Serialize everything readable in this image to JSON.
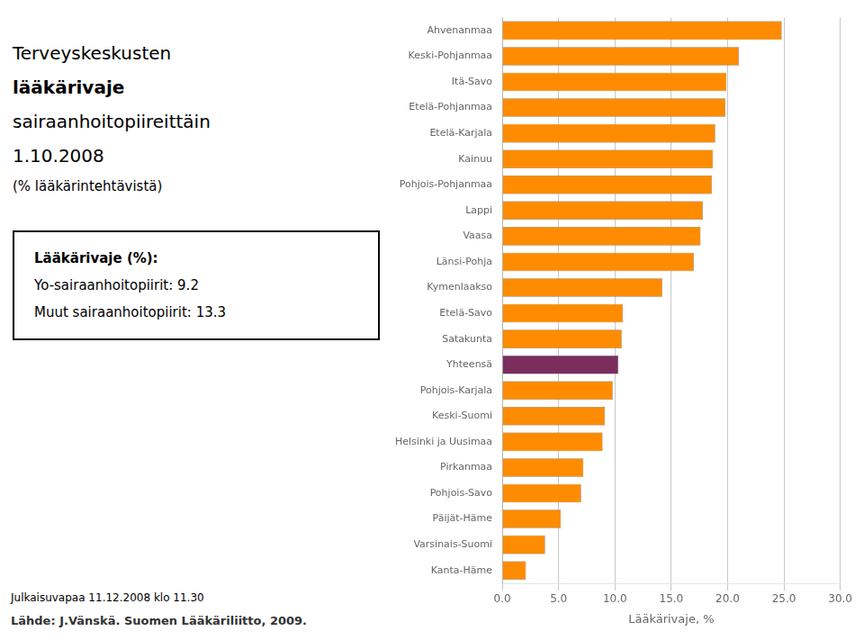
{
  "chart_data": {
    "type": "bar",
    "orientation": "horizontal",
    "title": [
      "Terveyskeskusten",
      "lääkärivaje",
      "sairaanhoitopiireittäin",
      "1.10.2008"
    ],
    "subtitle": "(% lääkärintehtävistä)",
    "annotations": [
      "Lääkärivaje (%):",
      "Yo-sairaanhoitopiirit: 9.2",
      "Muut sairaanhoitopiirit: 13.3",
      "Julkaisuvapaa 11.12.2008 klo 11.30",
      "Lähde: J.Vänskä. Suomen Lääkäriliitto, 2009."
    ],
    "categories": [
      "Ahvenanmaa",
      "Keski-Pohjanmaa",
      "Itä-Savo",
      "Etelä-Pohjanmaa",
      "Etelä-Karjala",
      "Kainuu",
      "Pohjois-Pohjanmaa",
      "Lappi",
      "Vaasa",
      "Länsi-Pohja",
      "Kymenlaakso",
      "Etelä-Savo",
      "Satakunta",
      "Yhteensä",
      "Pohjois-Karjala",
      "Keski-Suomi",
      "Helsinki ja Uusimaa",
      "Pirkanmaa",
      "Pohjois-Savo",
      "Päijät-Häme",
      "Varsinais-Suomi",
      "Kanta-Häme"
    ],
    "values": [
      24.8,
      21.0,
      19.9,
      19.8,
      18.9,
      18.7,
      18.6,
      17.8,
      17.6,
      17.0,
      14.2,
      10.7,
      10.6,
      10.3,
      9.8,
      9.1,
      8.9,
      7.2,
      7.0,
      5.2,
      3.8,
      2.1
    ],
    "colors": [
      "#FF8C00",
      "#FF8C00",
      "#FF8C00",
      "#FF8C00",
      "#FF8C00",
      "#FF8C00",
      "#FF8C00",
      "#FF8C00",
      "#FF8C00",
      "#FF8C00",
      "#FF8C00",
      "#FF8C00",
      "#FF8C00",
      "#7B2D5E",
      "#FF8C00",
      "#FF8C00",
      "#FF8C00",
      "#FF8C00",
      "#FF8C00",
      "#FF8C00",
      "#FF8C00",
      "#FF8C00"
    ],
    "xlabel": "Lääkärivaje, %",
    "xlim": [
      0,
      30
    ],
    "xticks": [
      {
        "value": 0,
        "label": "0.0"
      },
      {
        "value": 5,
        "label": "5.0"
      },
      {
        "value": 10,
        "label": "10.0"
      },
      {
        "value": 15,
        "label": "15.0"
      },
      {
        "value": 20,
        "label": "20.0"
      },
      {
        "value": 25,
        "label": "25.0"
      },
      {
        "value": 30,
        "label": "30.0"
      }
    ],
    "grid": true
  }
}
